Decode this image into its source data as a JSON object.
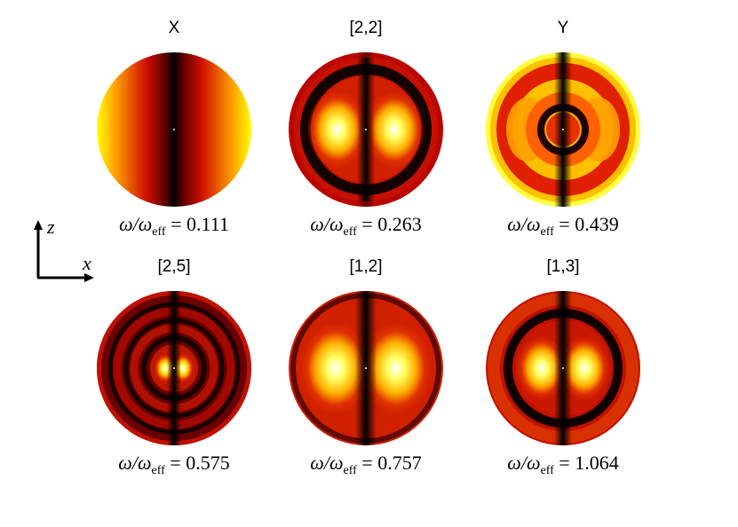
{
  "axes": {
    "vertical_label": "z",
    "horizontal_label": "x"
  },
  "freq_prefix": "ω/ω",
  "freq_subscript": "eff",
  "colormap": "hot",
  "panels": [
    {
      "title": "X",
      "value": "0.111",
      "pattern": "X"
    },
    {
      "title": "[2,2]",
      "value": "0.263",
      "pattern": "d22"
    },
    {
      "title": "Y",
      "value": "0.439",
      "pattern": "Y"
    },
    {
      "title": "[2,5]",
      "value": "0.575",
      "pattern": "d25"
    },
    {
      "title": "[1,2]",
      "value": "0.757",
      "pattern": "d12"
    },
    {
      "title": "[1,3]",
      "value": "1.064",
      "pattern": "d13"
    }
  ]
}
